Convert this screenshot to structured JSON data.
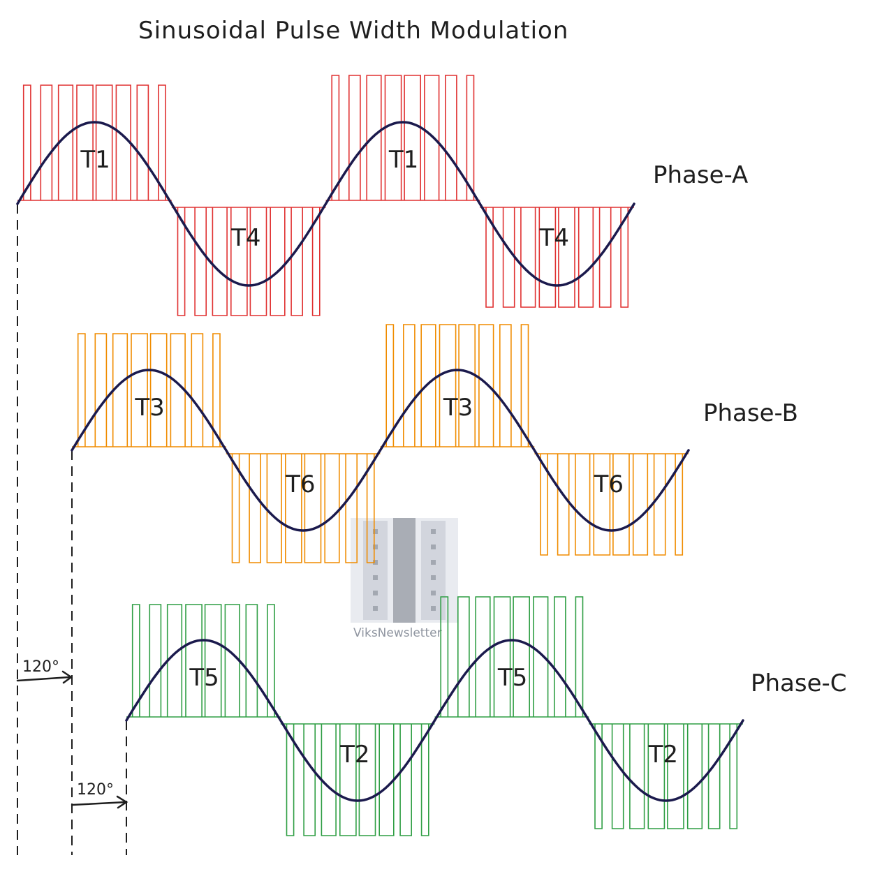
{
  "title": "Sinusoidal Pulse Width Modulation",
  "colors": {
    "ink": "#1e1e1e",
    "sine": "#1b1a4d",
    "phase_a": "#e03131",
    "phase_b": "#f08c00",
    "phase_c": "#2f9e44"
  },
  "phases": [
    {
      "name": "Phase-A",
      "positive_label": "T1",
      "negative_label": "T4"
    },
    {
      "name": "Phase-B",
      "positive_label": "T3",
      "negative_label": "T6"
    },
    {
      "name": "Phase-C",
      "positive_label": "T5",
      "negative_label": "T2"
    }
  ],
  "phase_shift": "120°",
  "watermark": {
    "text": "ViksNewsletter",
    "icon": "inductor-icon"
  }
}
